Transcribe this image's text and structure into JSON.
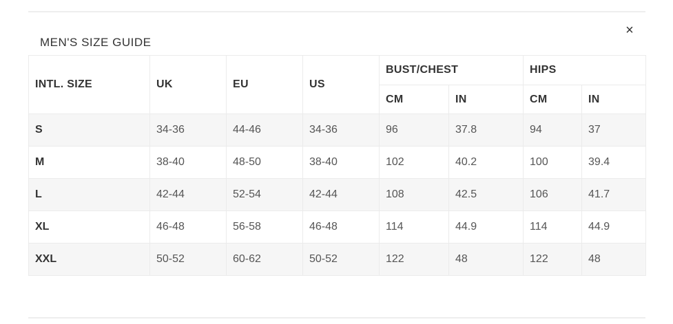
{
  "modal": {
    "title": "MEN'S SIZE GUIDE",
    "close_symbol": "×"
  },
  "table": {
    "headers": {
      "intl_size": "INTL. SIZE",
      "uk": "UK",
      "eu": "EU",
      "us": "US",
      "bust_chest": "BUST/CHEST",
      "hips": "HIPS",
      "bust_cm": "CM",
      "bust_in": "IN",
      "hips_cm": "CM",
      "hips_in": "IN"
    },
    "rows": [
      [
        "S",
        "34-36",
        "44-46",
        "34-36",
        "96",
        "37.8",
        "94",
        "37"
      ],
      [
        "M",
        "38-40",
        "48-50",
        "38-40",
        "102",
        "40.2",
        "100",
        "39.4"
      ],
      [
        "L",
        "42-44",
        "52-54",
        "42-44",
        "108",
        "42.5",
        "106",
        "41.7"
      ],
      [
        "XL",
        "46-48",
        "56-58",
        "46-48",
        "114",
        "44.9",
        "114",
        "44.9"
      ],
      [
        "XXL",
        "50-52",
        "60-62",
        "50-52",
        "122",
        "48",
        "122",
        "48"
      ]
    ]
  },
  "colors": {
    "text": "#333333",
    "cell_text": "#555555",
    "shaded_row": "#f6f6f6",
    "border": "#ebebeb"
  }
}
